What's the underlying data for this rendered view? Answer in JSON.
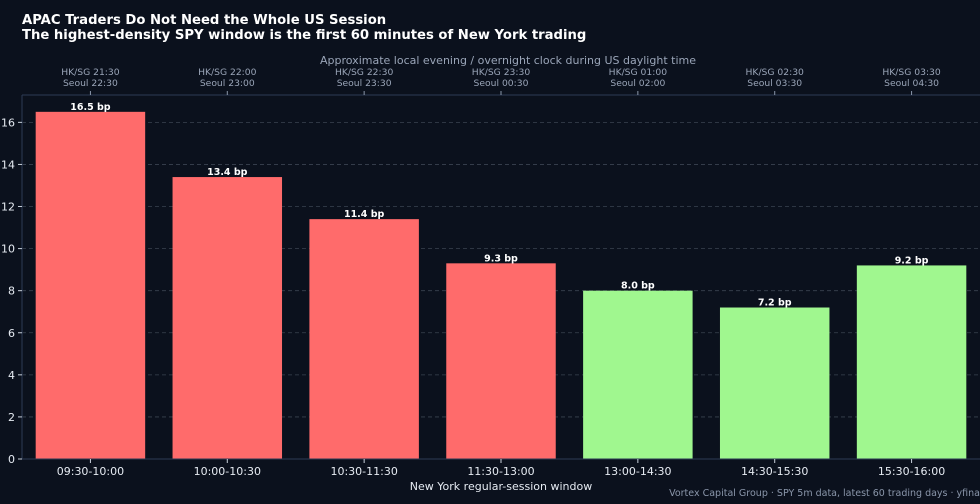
{
  "title_line1": "APAC Traders Do Not Need the Whole US Session",
  "title_line2": "The highest-density SPY window is the first 60 minutes of New York trading",
  "footer": "Vortex Capital Group · SPY 5m data, latest 60 trading days · yfina",
  "colors": {
    "background": "#0b111d",
    "bar_red": "#ff6b6b",
    "bar_green": "#a0f78f",
    "grid": "#3a4350",
    "axis": "#2c3a55"
  },
  "chart_data": {
    "type": "bar",
    "title": "APAC Traders Do Not Need the Whole US Session",
    "subtitle": "The highest-density SPY window is the first 60 minutes of New York trading",
    "xlabel": "New York regular-session window",
    "ylabel": "",
    "top_axis_label": "Approximate local evening / overnight clock during US daylight time",
    "categories": [
      "09:30-10:00",
      "10:00-10:30",
      "10:30-11:30",
      "11:30-13:00",
      "13:00-14:30",
      "14:30-15:30",
      "15:30-16:00"
    ],
    "values": [
      16.5,
      13.4,
      11.4,
      9.3,
      8.0,
      7.2,
      9.2
    ],
    "value_labels": [
      "16.5 bp",
      "13.4 bp",
      "11.4 bp",
      "9.3 bp",
      "8.0 bp",
      "7.2 bp",
      "9.2 bp"
    ],
    "bar_colors": [
      "#ff6b6b",
      "#ff6b6b",
      "#ff6b6b",
      "#ff6b6b",
      "#a0f78f",
      "#a0f78f",
      "#a0f78f"
    ],
    "top_tick_labels": [
      [
        "HK/SG 21:30",
        "Seoul 22:30"
      ],
      [
        "HK/SG 22:00",
        "Seoul 23:00"
      ],
      [
        "HK/SG 22:30",
        "Seoul 23:30"
      ],
      [
        "HK/SG 23:30",
        "Seoul 00:30"
      ],
      [
        "HK/SG 01:00",
        "Seoul 02:00"
      ],
      [
        "HK/SG 02:30",
        "Seoul 03:30"
      ],
      [
        "HK/SG 03:30",
        "Seoul 04:30"
      ]
    ],
    "y_ticks": [
      0,
      2,
      4,
      6,
      8,
      10,
      12,
      14,
      16
    ],
    "ylim": [
      0,
      17.3
    ],
    "grid": true,
    "grid_axis": "y"
  }
}
